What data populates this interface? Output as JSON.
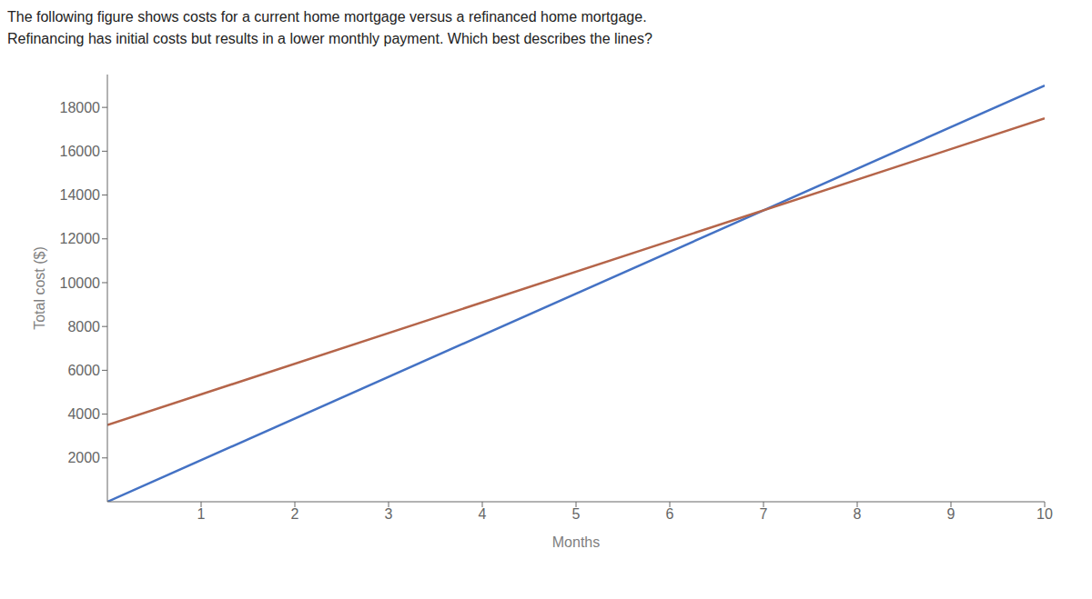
{
  "chart_data": {
    "type": "line",
    "title": "The following figure shows costs for a current home mortgage versus a refinanced home mortgage.",
    "subtitle": "Refinancing has initial costs but results in a lower monthly payment. Which best describes the lines?",
    "xlabel": "Months",
    "ylabel": "Total cost ($)",
    "x": [
      0,
      10
    ],
    "series": [
      {
        "color": "#4472C4",
        "values": [
          0,
          19000
        ]
      },
      {
        "color": "#B5654A",
        "values": [
          3500,
          17500
        ]
      }
    ],
    "xlim": [
      0,
      10
    ],
    "xticks": [
      1,
      2,
      3,
      4,
      5,
      6,
      7,
      8,
      9,
      10
    ],
    "ylim": [
      0,
      19500
    ],
    "yticks": [
      2000,
      4000,
      6000,
      8000,
      10000,
      12000,
      14000,
      16000,
      18000
    ],
    "grid": false
  }
}
